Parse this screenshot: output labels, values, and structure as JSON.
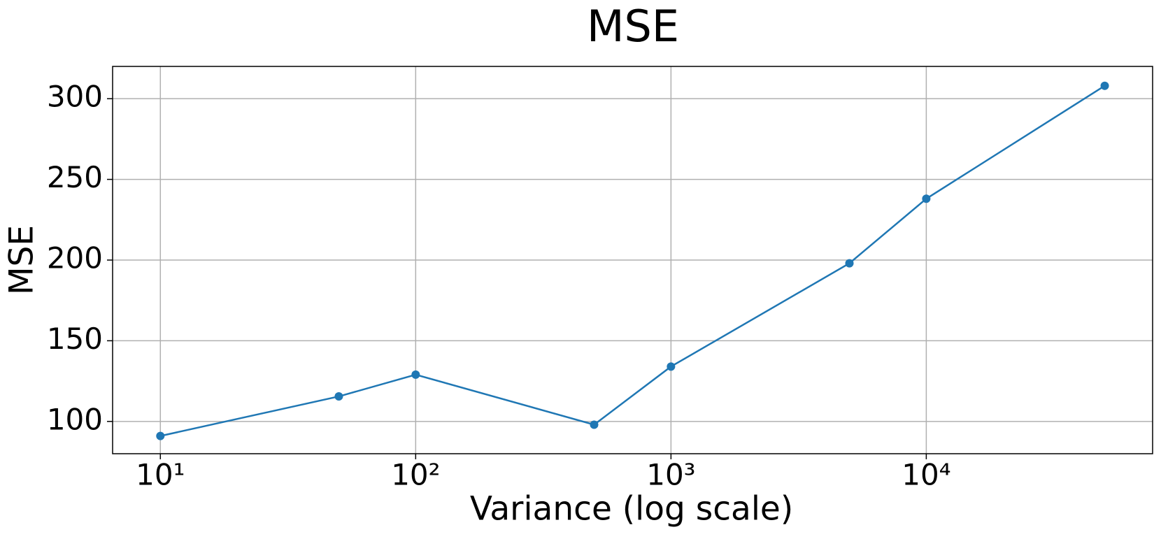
{
  "chart_data": {
    "type": "line",
    "title": "MSE",
    "x_label": "Variance (log scale)",
    "y_label": "MSE",
    "x": [
      10,
      50,
      100,
      500,
      1000,
      5000,
      10000,
      50000
    ],
    "series": [
      {
        "name": "MSE",
        "color": "#1f77b4",
        "values": [
          91,
          115.5,
          129,
          98,
          134,
          198,
          238,
          308
        ]
      }
    ],
    "xscale": "log",
    "xlim": [
      6.5,
      77000
    ],
    "xticks": [
      {
        "value": 10,
        "label": "10¹"
      },
      {
        "value": 100,
        "label": "10²"
      },
      {
        "value": 1000,
        "label": "10³"
      },
      {
        "value": 10000,
        "label": "10⁴"
      }
    ],
    "ylim": [
      80,
      320
    ],
    "yticks": [
      100,
      150,
      200,
      250,
      300
    ],
    "grid": true
  }
}
